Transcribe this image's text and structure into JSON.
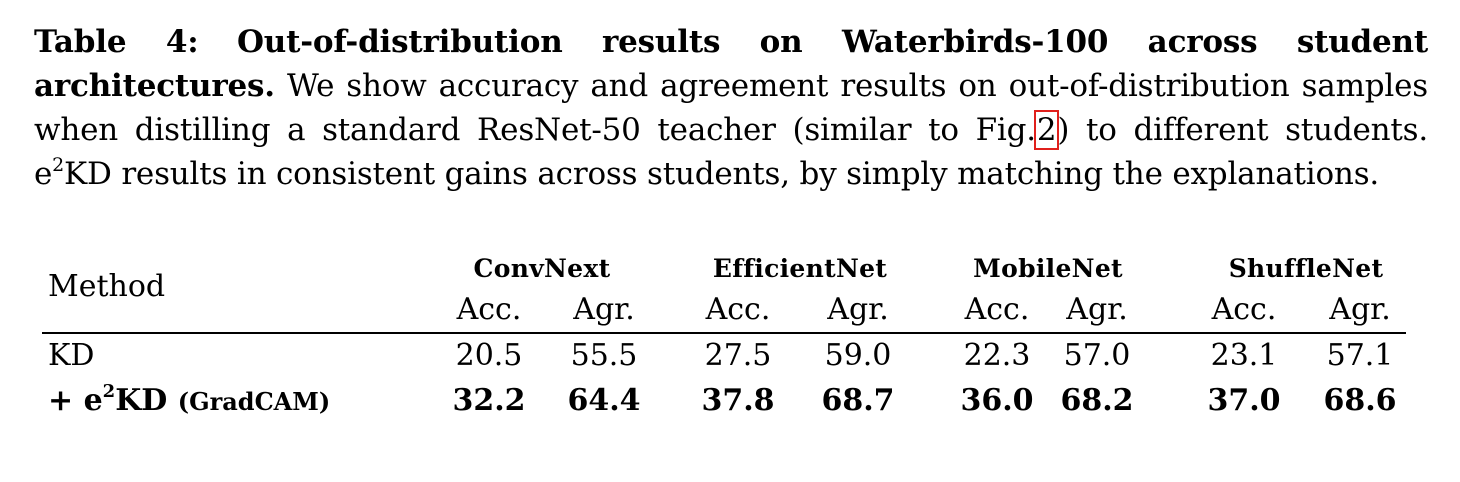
{
  "caption": {
    "label": "Table 4:",
    "title": "Out-of-distribution results on Waterbirds-100 across student architectures.",
    "text_part1": "We show accuracy and agreement results on out-of-distribution samples when distilling a standard ResNet-50 teacher (similar to Fig.",
    "fig_ref": "2",
    "text_part2": ") to different students.",
    "text_e": "e",
    "text_sup": "2",
    "text_part3": "KD results in consistent gains across students, by simply matching the explanations.",
    "ref_box_color": "#e0201c"
  },
  "table": {
    "method_header": "Method",
    "groups": [
      "ConvNext",
      "EfficientNet",
      "MobileNet",
      "ShuffleNet"
    ],
    "subheaders": [
      "Acc.",
      "Agr.",
      "Acc.",
      "Agr.",
      "Acc.",
      "Agr.",
      "Acc.",
      "Agr."
    ],
    "rows": [
      {
        "method_prefix": "",
        "method": "KD",
        "bold": false,
        "values": [
          "20.5",
          "55.5",
          "27.5",
          "59.0",
          "22.3",
          "57.0",
          "23.1",
          "57.1"
        ]
      },
      {
        "method_prefix": "+ e",
        "method_sup": "2",
        "method": "KD",
        "method_suffix": "(GradCAM)",
        "bold": true,
        "values": [
          "32.2",
          "64.4",
          "37.8",
          "68.7",
          "36.0",
          "68.2",
          "37.0",
          "68.6"
        ]
      }
    ]
  }
}
